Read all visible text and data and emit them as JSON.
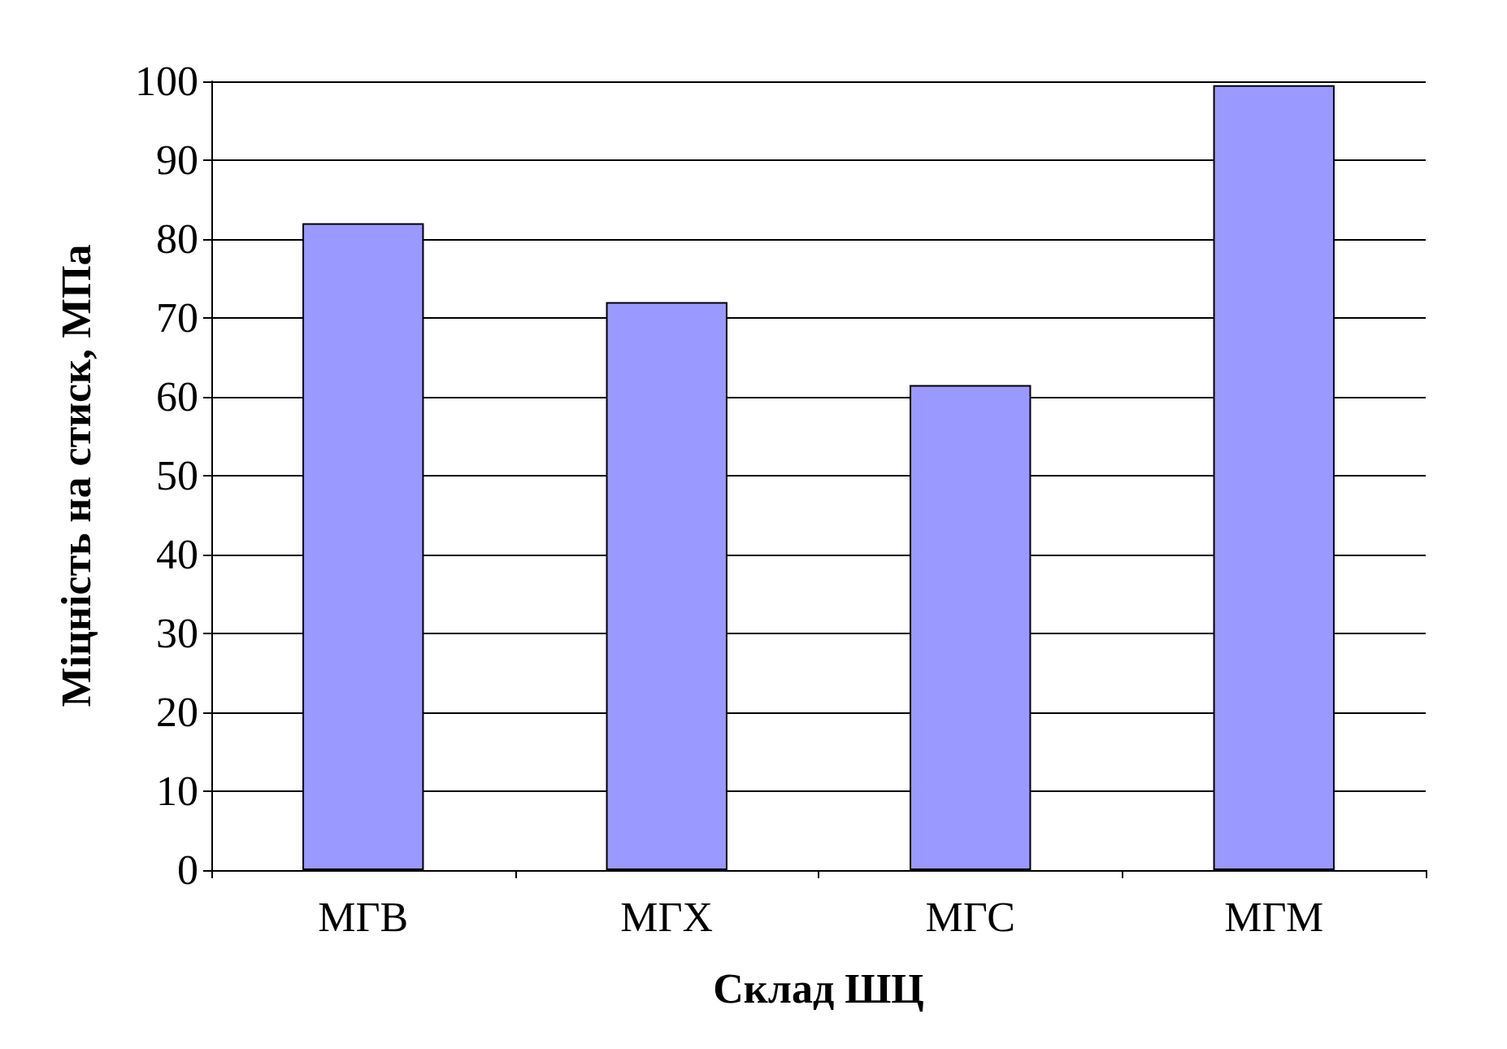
{
  "chart_data": {
    "type": "bar",
    "xlabel": "Склад ШЦ",
    "ylabel": "Міцність на стиск, МПа",
    "categories": [
      "МГВ",
      "МГХ",
      "МГС",
      "МГМ"
    ],
    "values": [
      82,
      72,
      61.5,
      99.5
    ],
    "color": "#9999ff",
    "ylim": [
      0,
      100
    ],
    "yticks": [
      0,
      10,
      20,
      30,
      40,
      50,
      60,
      70,
      80,
      90,
      100
    ],
    "grid": "y"
  }
}
